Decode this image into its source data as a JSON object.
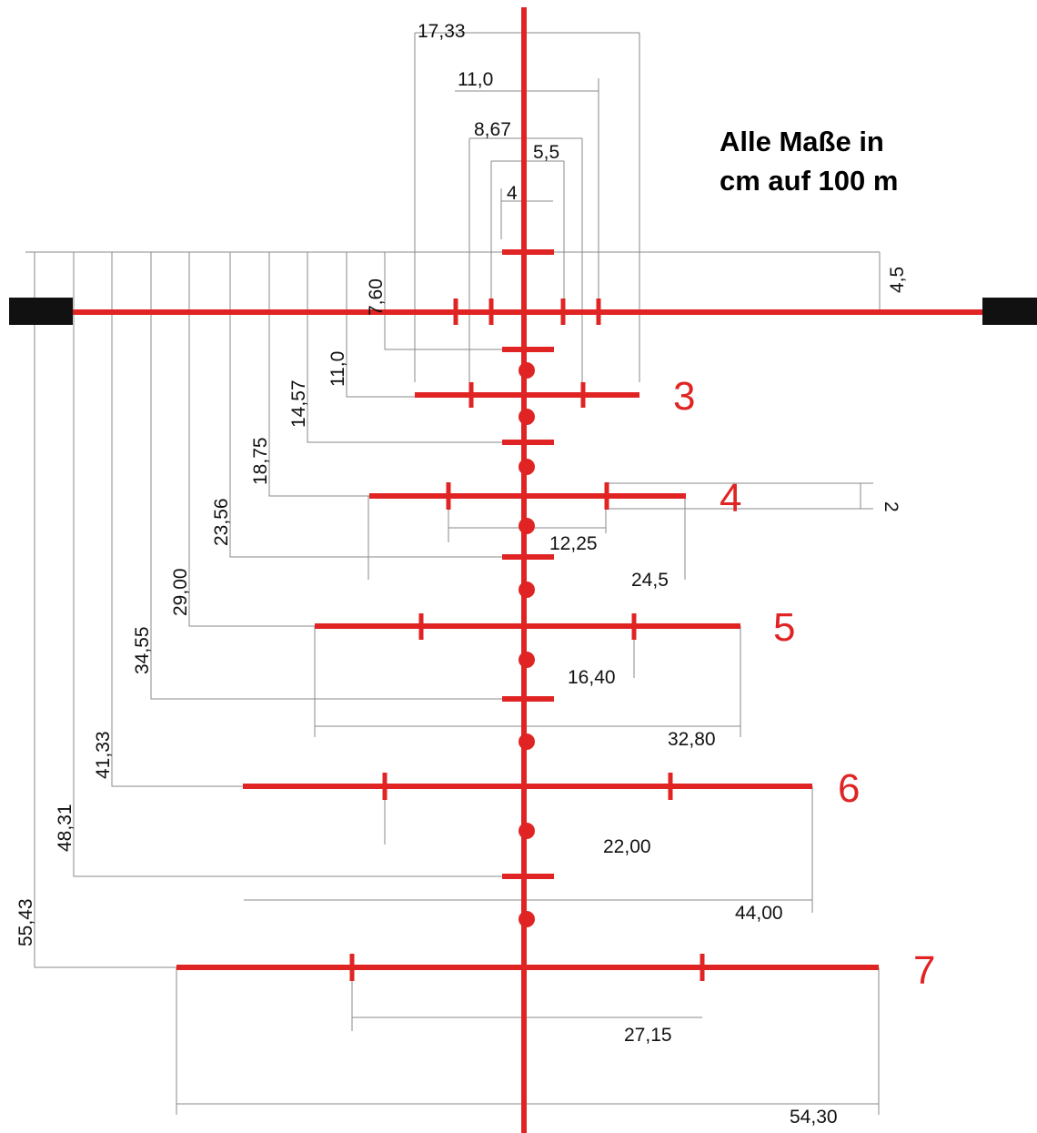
{
  "note_line1": "Alle Maße in",
  "note_line2": "cm auf 100 m",
  "colors": {
    "reticle": "#e02424",
    "dimension": "#8a8a8a",
    "text": "#111111",
    "post": "#111111"
  },
  "top_widths": {
    "w1733": "17,33",
    "w110": "11,0",
    "w867": "8,67",
    "w55": "5,5",
    "w4": "4"
  },
  "hold_values": {
    "v76": "7,60",
    "v110": "11,0",
    "v1457": "14,57",
    "v1875": "18,75",
    "v2356": "23,56",
    "v2900": "29,00",
    "v3455": "34,55",
    "v4133": "41,33",
    "v4831": "48,31",
    "v5543": "55,43",
    "v45": "4,5",
    "v2": "2"
  },
  "bar_widths": {
    "w1225": "12,25",
    "w245": "24,5",
    "w1640": "16,40",
    "w3280": "32,80",
    "w2200": "22,00",
    "w4400": "44,00",
    "w2715": "27,15",
    "w5430": "54,30"
  },
  "bar_numbers": {
    "n3": "3",
    "n4": "4",
    "n5": "5",
    "n6": "6",
    "n7": "7"
  }
}
